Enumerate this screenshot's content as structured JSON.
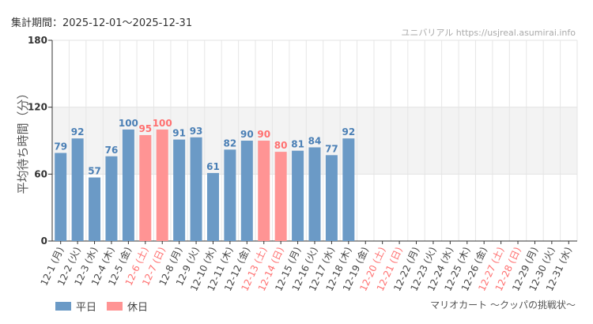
{
  "header": {
    "period": "集計期間：2025-12-01～2025-12-31",
    "credit": "ユニバリアル  https://usjreal.asumirai.info"
  },
  "footer": {
    "subtitle": "マリオカート ～クッパの挑戦状～"
  },
  "chart_data": {
    "type": "bar",
    "ylabel": "平均待ち時間（分）",
    "ylim": [
      0,
      180
    ],
    "yticks": [
      "0",
      "60",
      "120",
      "180"
    ],
    "shaded_band": [
      60,
      120
    ],
    "categories": [
      "12-1 (月)",
      "12-2 (火)",
      "12-3 (水)",
      "12-4 (木)",
      "12-5 (金)",
      "12-6 (土)",
      "12-7 (日)",
      "12-8 (月)",
      "12-9 (火)",
      "12-10 (水)",
      "12-11 (木)",
      "12-12 (金)",
      "12-13 (土)",
      "12-14 (日)",
      "12-15 (月)",
      "12-16 (火)",
      "12-17 (水)",
      "12-18 (木)",
      "12-19 (金)",
      "12-20 (土)",
      "12-21 (日)",
      "12-22 (月)",
      "12-23 (火)",
      "12-24 (水)",
      "12-25 (木)",
      "12-26 (金)",
      "12-27 (土)",
      "12-28 (日)",
      "12-29 (月)",
      "12-30 (火)",
      "12-31 (水)"
    ],
    "holiday": [
      0,
      0,
      0,
      0,
      0,
      1,
      1,
      0,
      0,
      0,
      0,
      0,
      1,
      1,
      0,
      0,
      0,
      0,
      0,
      1,
      1,
      0,
      0,
      0,
      0,
      0,
      1,
      1,
      0,
      0,
      0
    ],
    "values": [
      79,
      92,
      57,
      76,
      100,
      95,
      100,
      91,
      93,
      61,
      82,
      90,
      90,
      80,
      81,
      84,
      77,
      92,
      null,
      null,
      null,
      null,
      null,
      null,
      null,
      null,
      null,
      null,
      null,
      null,
      null
    ],
    "legend": [
      {
        "label": "平日",
        "color": "#6b9ac6"
      },
      {
        "label": "休日",
        "color": "#ff9494"
      }
    ],
    "colors": {
      "weekday": "#6b9ac6",
      "holiday": "#ff9494",
      "weekday_text": "#4a7fb5",
      "holiday_text": "#ff7070"
    }
  }
}
